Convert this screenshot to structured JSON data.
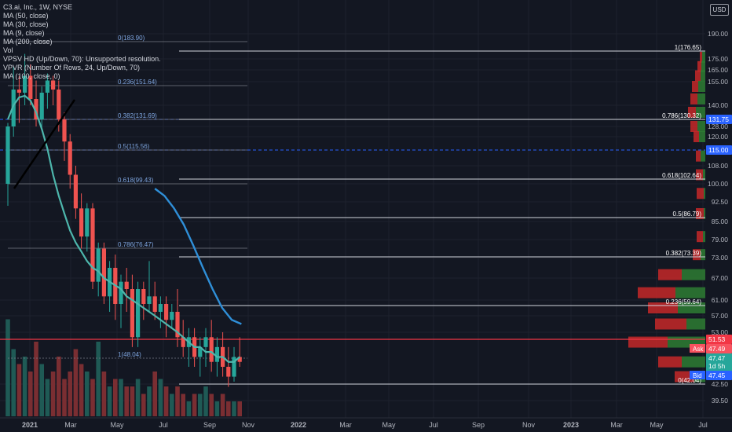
{
  "legend": {
    "title": "C3.ai, Inc., 1W, NYSE",
    "indicators": [
      "MA (50, close)",
      "MA (30, close)",
      "MA (9, close)",
      "MA (200, close)",
      "Vol",
      "VPSV HD (Up/Down, 70): Unsupported resolution.",
      "VPVR (Number Of Rows, 24, Up/Down, 70)",
      "MA (100, close, 0)"
    ]
  },
  "currency": "USD",
  "y_ticks": [
    "190.00",
    "175.00",
    "165.00",
    "155.00",
    "140.00",
    "128.00",
    "120.00",
    "108.00",
    "100.00",
    "92.50",
    "85.00",
    "79.00",
    "73.00",
    "67.00",
    "61.00",
    "57.00",
    "53.00",
    "42.50",
    "39.50"
  ],
  "x_ticks": [
    "2021",
    "Mar",
    "May",
    "Jul",
    "Sep",
    "Nov",
    "2022",
    "Mar",
    "May",
    "Jul",
    "Sep",
    "Nov",
    "2023",
    "Mar",
    "May",
    "Jul"
  ],
  "fib_left": [
    "0(183.90)",
    "0.236(151.64)",
    "0.382(131.69)",
    "0.5(115.56)",
    "0.618(99.43)",
    "0.786(76.47)",
    "1(48.04)"
  ],
  "fib_right": [
    "1(176.65)",
    "0.786(130.32)",
    "0.618(102.64)",
    "0.5(86.79)",
    "0.382(73.39)",
    "0.236(59.64)",
    "0(42.04)"
  ],
  "price_labels": {
    "blue1": "131.75",
    "blue2": "115.00",
    "red": "51.53",
    "ask_label": "Ask",
    "ask": "47.49",
    "last": "47.47",
    "countdown": "1d 5h",
    "bid_label": "Bid",
    "bid": "47.45"
  },
  "colors": {
    "up": "#26a69a",
    "down": "#ef5350",
    "ma_teal": "#4db6ac",
    "ma_blue": "#2f8fd8",
    "hline_red": "#f23645",
    "hline_blue": "#2962ff"
  },
  "chart_data": {
    "type": "candlestick",
    "series": [
      {
        "name": "C3.ai, Inc., 1W, NYSE",
        "values": [
          [
            100,
            130,
            91,
            128
          ],
          [
            128,
            168,
            120,
            150
          ],
          [
            150,
            160,
            130,
            148
          ],
          [
            148,
            178,
            140,
            160
          ],
          [
            160,
            170,
            140,
            144
          ],
          [
            144,
            156,
            128,
            132
          ],
          [
            132,
            152,
            126,
            148
          ],
          [
            148,
            162,
            138,
            156
          ],
          [
            156,
            160,
            140,
            150
          ],
          [
            150,
            156,
            124,
            132
          ],
          [
            132,
            136,
            110,
            118
          ],
          [
            118,
            122,
            98,
            104
          ],
          [
            104,
            108,
            86,
            90
          ],
          [
            90,
            96,
            76,
            80
          ],
          [
            80,
            92,
            75,
            90
          ],
          [
            90,
            92,
            64,
            66
          ],
          [
            66,
            78,
            62,
            76
          ],
          [
            76,
            78,
            60,
            62
          ],
          [
            62,
            72,
            58,
            70
          ],
          [
            70,
            74,
            56,
            60
          ],
          [
            60,
            68,
            54,
            66
          ],
          [
            66,
            70,
            58,
            64
          ],
          [
            64,
            68,
            50,
            52
          ],
          [
            52,
            66,
            50,
            64
          ],
          [
            64,
            66,
            56,
            60
          ],
          [
            60,
            72,
            58,
            62
          ],
          [
            62,
            66,
            56,
            58
          ],
          [
            58,
            62,
            54,
            60
          ],
          [
            60,
            62,
            52,
            56
          ],
          [
            56,
            60,
            54,
            58
          ],
          [
            58,
            64,
            50,
            52
          ],
          [
            52,
            56,
            48,
            50
          ],
          [
            50,
            54,
            46,
            52
          ],
          [
            52,
            54,
            46,
            48
          ],
          [
            48,
            52,
            44,
            50
          ],
          [
            50,
            54,
            46,
            52
          ],
          [
            52,
            56,
            45,
            47
          ],
          [
            47,
            52,
            44,
            50
          ],
          [
            50,
            53,
            44,
            46
          ],
          [
            46,
            50,
            42,
            44
          ],
          [
            44,
            50,
            43,
            48
          ],
          [
            48,
            52,
            46,
            47
          ]
        ]
      },
      {
        "name": "MA (9, close)",
        "values": [
          132,
          140,
          145,
          146,
          143,
          136,
          126,
          115,
          104,
          95,
          88,
          82,
          78,
          75,
          72,
          70,
          69,
          67,
          66,
          65,
          64,
          62,
          61,
          60,
          59,
          58,
          57,
          56,
          55,
          54,
          53,
          52,
          51,
          50,
          50,
          49,
          49,
          48,
          48,
          47,
          47,
          48
        ]
      },
      {
        "name": "MA (30, close)",
        "values": [
          98,
          95,
          90,
          84,
          77,
          70,
          64,
          59,
          56,
          55
        ]
      },
      {
        "name": "Vol",
        "values": [
          13,
          9,
          7,
          8,
          6,
          10,
          7,
          5,
          6,
          8,
          5,
          6,
          9,
          7,
          6,
          5,
          10,
          6,
          4,
          5,
          5,
          4,
          4,
          5,
          3,
          4,
          6,
          5,
          4,
          3,
          4,
          3,
          2,
          3,
          3,
          4,
          3,
          2,
          3,
          2,
          2,
          2
        ]
      }
    ],
    "volume_profile": [
      {
        "price": 176,
        "up": 4,
        "down": 3
      },
      {
        "price": 168,
        "up": 5,
        "down": 5
      },
      {
        "price": 160,
        "up": 6,
        "down": 7
      },
      {
        "price": 152,
        "up": 9,
        "down": 8
      },
      {
        "price": 144,
        "up": 10,
        "down": 9
      },
      {
        "price": 136,
        "up": 12,
        "down": 10
      },
      {
        "price": 128,
        "up": 10,
        "down": 9
      },
      {
        "price": 120,
        "up": 8,
        "down": 7
      },
      {
        "price": 112,
        "up": 6,
        "down": 6
      },
      {
        "price": 104,
        "up": 3,
        "down": 9
      },
      {
        "price": 96,
        "up": 2,
        "down": 9
      },
      {
        "price": 88,
        "up": 2,
        "down": 10
      },
      {
        "price": 80,
        "up": 3,
        "down": 8
      },
      {
        "price": 74,
        "up": 6,
        "down": 10
      },
      {
        "price": 68,
        "up": 30,
        "down": 30
      },
      {
        "price": 63,
        "up": 38,
        "down": 48
      },
      {
        "price": 59,
        "up": 35,
        "down": 38
      },
      {
        "price": 55,
        "up": 24,
        "down": 40
      },
      {
        "price": 51,
        "up": 48,
        "down": 50
      },
      {
        "price": 47,
        "up": 30,
        "down": 30
      },
      {
        "price": 44,
        "up": 14,
        "down": 25
      }
    ]
  }
}
